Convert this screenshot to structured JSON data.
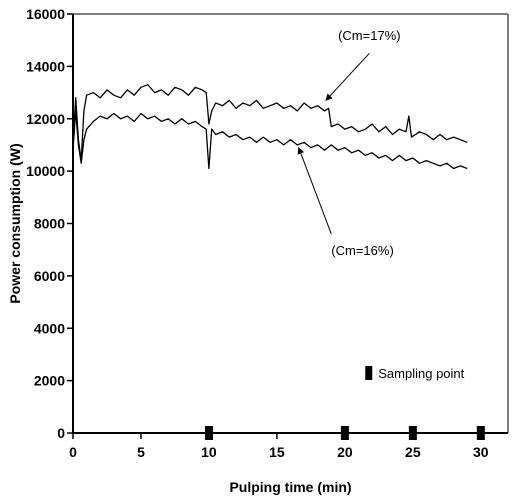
{
  "chart_data": {
    "type": "line",
    "title": "",
    "xlabel": "Pulping time (min)",
    "ylabel": "Power consumption (W)",
    "xlim": [
      0,
      32
    ],
    "ylim": [
      0,
      16000
    ],
    "x_ticks": [
      0,
      5,
      10,
      15,
      20,
      25,
      30
    ],
    "x_tick_labels": [
      "0",
      "5",
      "10",
      "15",
      "20",
      "25",
      "30"
    ],
    "y_ticks": [
      0,
      2000,
      4000,
      6000,
      8000,
      10000,
      12000,
      14000,
      16000
    ],
    "y_tick_labels": [
      "0",
      "2000",
      "4000",
      "6000",
      "8000",
      "10000",
      "12000",
      "14000",
      "16000"
    ],
    "grid": false,
    "series": [
      {
        "name": "(Cm=17%)",
        "x": [
          0,
          0.2,
          0.4,
          0.6,
          0.8,
          1.0,
          1.5,
          2,
          2.5,
          3,
          3.5,
          4,
          4.5,
          5,
          5.5,
          6,
          6.5,
          7,
          7.5,
          8,
          8.5,
          9,
          9.5,
          9.8,
          9.9,
          10.0,
          10.2,
          10.5,
          11,
          11.5,
          12,
          12.5,
          13,
          13.5,
          14,
          14.5,
          15,
          15.5,
          16,
          16.5,
          17,
          17.5,
          18,
          18.5,
          18.8,
          19.0,
          19.5,
          20,
          20.5,
          21,
          21.5,
          22,
          22.5,
          23,
          23.5,
          24,
          24.5,
          24.7,
          24.9,
          25.5,
          26,
          26.5,
          27,
          27.5,
          28,
          28.5,
          29
        ],
        "y": [
          11000,
          12800,
          11200,
          10400,
          12300,
          12900,
          13000,
          12800,
          13100,
          12900,
          12800,
          13100,
          12900,
          13200,
          13300,
          13000,
          13100,
          12900,
          13200,
          13100,
          12900,
          13200,
          13100,
          13000,
          12400,
          11800,
          12300,
          12600,
          12500,
          12700,
          12400,
          12600,
          12500,
          12700,
          12400,
          12500,
          12600,
          12400,
          12500,
          12300,
          12600,
          12400,
          12500,
          12300,
          12400,
          11700,
          11800,
          11600,
          11700,
          11500,
          11600,
          11800,
          11500,
          11700,
          11400,
          11600,
          11500,
          12100,
          11300,
          11500,
          11400,
          11200,
          11400,
          11200,
          11300,
          11200,
          11100
        ]
      },
      {
        "name": "(Cm=16%)",
        "x": [
          0,
          0.2,
          0.4,
          0.6,
          0.8,
          1.0,
          1.5,
          2,
          2.5,
          3,
          3.5,
          4,
          4.5,
          5,
          5.5,
          6,
          6.5,
          7,
          7.5,
          8,
          8.5,
          9,
          9.5,
          9.8,
          9.9,
          10.0,
          10.2,
          10.5,
          11,
          11.5,
          12,
          12.5,
          13,
          13.5,
          14,
          14.5,
          15,
          15.5,
          16,
          16.5,
          17,
          17.5,
          18,
          18.5,
          19,
          19.5,
          20,
          20.5,
          21,
          21.5,
          22,
          22.5,
          23,
          23.5,
          24,
          24.5,
          25,
          25.5,
          26,
          26.5,
          27,
          27.5,
          28,
          28.5,
          29
        ],
        "y": [
          10800,
          12300,
          11000,
          10300,
          11200,
          11600,
          11900,
          12100,
          12000,
          12200,
          12000,
          12100,
          11900,
          12200,
          12000,
          12100,
          11900,
          12000,
          11800,
          12000,
          11800,
          11900,
          11700,
          11600,
          10800,
          10100,
          11600,
          11400,
          11500,
          11300,
          11400,
          11200,
          11300,
          11100,
          11300,
          11100,
          11200,
          11000,
          11200,
          11000,
          11100,
          10900,
          11000,
          10800,
          11000,
          10800,
          10900,
          10700,
          10800,
          10600,
          10700,
          10500,
          10600,
          10400,
          10600,
          10400,
          10500,
          10300,
          10400,
          10300,
          10200,
          10300,
          10100,
          10200,
          10100
        ]
      }
    ],
    "annotations": [
      {
        "text": "(Cm=17%)",
        "label_x": 19.5,
        "label_y": 15000,
        "arrow_from": [
          21.8,
          14500
        ],
        "arrow_to": [
          18.6,
          12700
        ]
      },
      {
        "text": "(Cm=16%)",
        "label_x": 19,
        "label_y": 6800,
        "arrow_from": [
          19,
          7600
        ],
        "arrow_to": [
          16.6,
          10900
        ]
      }
    ],
    "sampling_points": {
      "label": "Sampling point",
      "x": [
        10,
        20,
        25,
        30
      ],
      "legend_x": 21.5,
      "legend_y": 2100
    }
  }
}
